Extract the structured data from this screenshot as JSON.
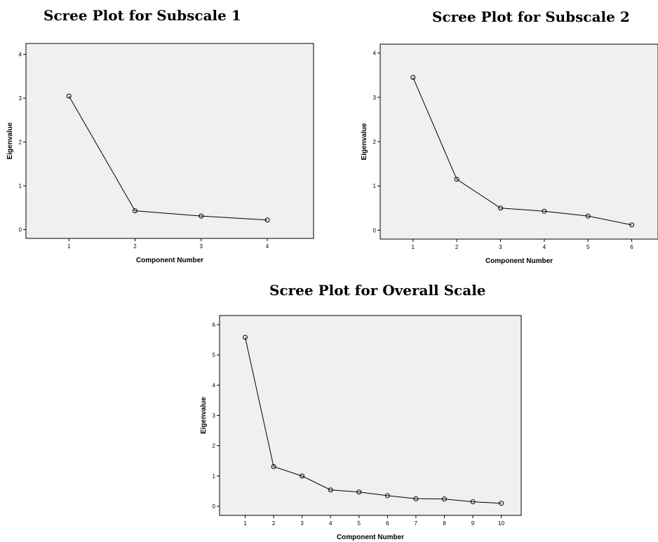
{
  "chart_data": [
    {
      "type": "line",
      "title": "Scree Plot for Subscale 1",
      "xlabel": "Component Number",
      "ylabel": "Eigenvalue",
      "x": [
        1,
        2,
        3,
        4
      ],
      "values": [
        3.05,
        0.43,
        0.31,
        0.22
      ],
      "xticks": [
        "1",
        "2",
        "3",
        "4"
      ],
      "yticks": [
        "0",
        "1",
        "2",
        "3",
        "4"
      ],
      "xlim": [
        0.35,
        4.7
      ],
      "ylim": [
        -0.2,
        4.25
      ],
      "grid": false,
      "marker": "open-circle"
    },
    {
      "type": "line",
      "title": "Scree Plot for Subscale 2",
      "xlabel": "Component Number",
      "ylabel": "Eigenvalue",
      "x": [
        1,
        2,
        3,
        4,
        5,
        6
      ],
      "values": [
        3.45,
        1.15,
        0.5,
        0.43,
        0.32,
        0.12
      ],
      "xticks": [
        "1",
        "2",
        "3",
        "4",
        "5",
        "6"
      ],
      "yticks": [
        "0",
        "1",
        "2",
        "3",
        "4"
      ],
      "xlim": [
        0.25,
        6.6
      ],
      "ylim": [
        -0.2,
        4.2
      ],
      "grid": false,
      "marker": "open-circle"
    },
    {
      "type": "line",
      "title": "Scree Plot for Overall Scale",
      "xlabel": "Component Number",
      "ylabel": "Eigenvalue",
      "x": [
        1,
        2,
        3,
        4,
        5,
        6,
        7,
        8,
        9,
        10
      ],
      "values": [
        5.58,
        1.31,
        1.0,
        0.54,
        0.47,
        0.35,
        0.25,
        0.24,
        0.15,
        0.1
      ],
      "xticks": [
        "1",
        "2",
        "3",
        "4",
        "5",
        "6",
        "7",
        "8",
        "9",
        "10"
      ],
      "yticks": [
        "0",
        "1",
        "2",
        "3",
        "4",
        "5",
        "6"
      ],
      "xlim": [
        0.1,
        10.7
      ],
      "ylim": [
        -0.3,
        6.3
      ],
      "grid": false,
      "marker": "open-circle"
    }
  ]
}
